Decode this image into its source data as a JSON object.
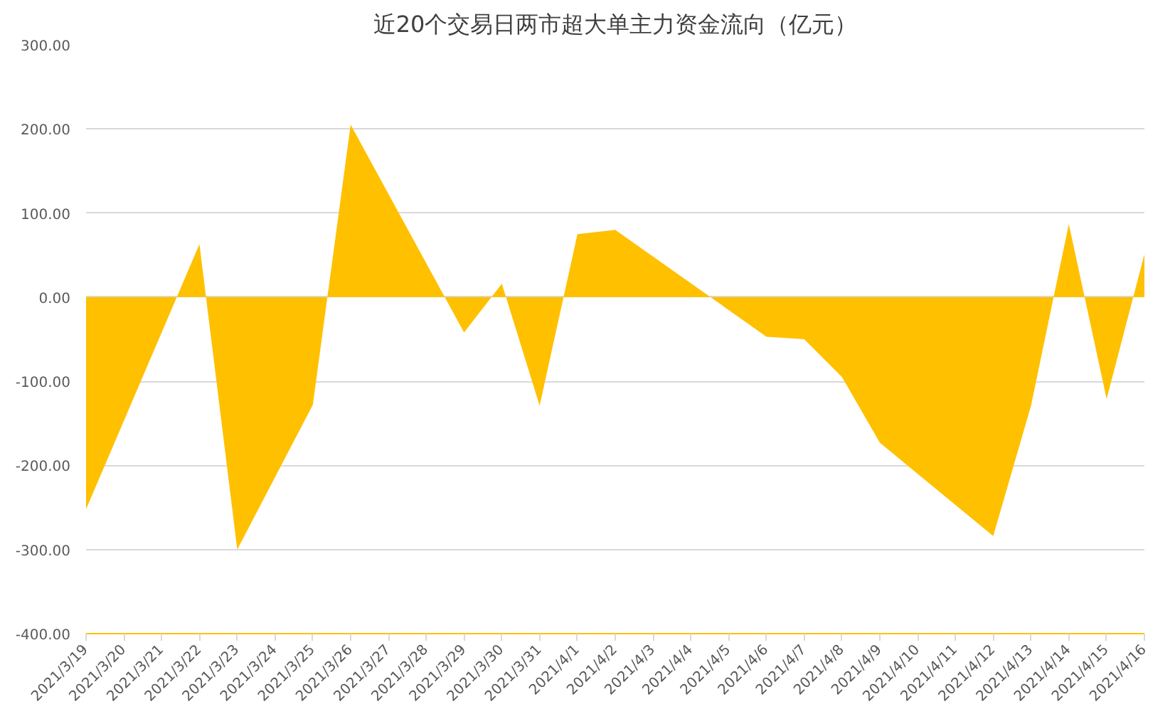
{
  "chart_data": {
    "type": "area",
    "title": "近20个交易日两市超大单主力资金流向（亿元）",
    "x": [
      "2021-03-19",
      "2021-03-22",
      "2021-03-23",
      "2021-03-24",
      "2021-03-25",
      "2021-03-26",
      "2021-03-29",
      "2021-03-30",
      "2021-03-31",
      "2021-04-01",
      "2021-04-02",
      "2021-04-06",
      "2021-04-07",
      "2021-04-08",
      "2021-04-09",
      "2021-04-12",
      "2021-04-13",
      "2021-04-14",
      "2021-04-15",
      "2021-04-16"
    ],
    "series": [
      {
        "color": "#ffc000",
        "values": [
          -252,
          63,
          -300,
          -214,
          -128,
          205,
          -42,
          16,
          -129,
          75,
          80,
          -47,
          -50,
          -95,
          -173,
          -284,
          -129,
          87,
          -121,
          51
        ]
      }
    ],
    "xlim": [
      "2021-03-19",
      "2021-04-16"
    ],
    "xticks": [
      {
        "value": "2021-03-19",
        "label": "2021/3/19"
      },
      {
        "value": "2021-03-20",
        "label": "2021/3/20"
      },
      {
        "value": "2021-03-21",
        "label": "2021/3/21"
      },
      {
        "value": "2021-03-22",
        "label": "2021/3/22"
      },
      {
        "value": "2021-03-23",
        "label": "2021/3/23"
      },
      {
        "value": "2021-03-24",
        "label": "2021/3/24"
      },
      {
        "value": "2021-03-25",
        "label": "2021/3/25"
      },
      {
        "value": "2021-03-26",
        "label": "2021/3/26"
      },
      {
        "value": "2021-03-27",
        "label": "2021/3/27"
      },
      {
        "value": "2021-03-28",
        "label": "2021/3/28"
      },
      {
        "value": "2021-03-29",
        "label": "2021/3/29"
      },
      {
        "value": "2021-03-30",
        "label": "2021/3/30"
      },
      {
        "value": "2021-03-31",
        "label": "2021/3/31"
      },
      {
        "value": "2021-04-01",
        "label": "2021/4/1"
      },
      {
        "value": "2021-04-02",
        "label": "2021/4/2"
      },
      {
        "value": "2021-04-03",
        "label": "2021/4/3"
      },
      {
        "value": "2021-04-04",
        "label": "2021/4/4"
      },
      {
        "value": "2021-04-05",
        "label": "2021/4/5"
      },
      {
        "value": "2021-04-06",
        "label": "2021/4/6"
      },
      {
        "value": "2021-04-07",
        "label": "2021/4/7"
      },
      {
        "value": "2021-04-08",
        "label": "2021/4/8"
      },
      {
        "value": "2021-04-09",
        "label": "2021/4/9"
      },
      {
        "value": "2021-04-10",
        "label": "2021/4/10"
      },
      {
        "value": "2021-04-11",
        "label": "2021/4/11"
      },
      {
        "value": "2021-04-12",
        "label": "2021/4/12"
      },
      {
        "value": "2021-04-13",
        "label": "2021/4/13"
      },
      {
        "value": "2021-04-14",
        "label": "2021/4/14"
      },
      {
        "value": "2021-04-15",
        "label": "2021/4/15"
      },
      {
        "value": "2021-04-16",
        "label": "2021/4/16"
      }
    ],
    "ylim": [
      -400,
      300
    ],
    "yticks": [
      {
        "value": -400,
        "label": "-400.00"
      },
      {
        "value": -300,
        "label": "-300.00"
      },
      {
        "value": -200,
        "label": "-200.00"
      },
      {
        "value": -100,
        "label": "-100.00"
      },
      {
        "value": 0,
        "label": "0.00"
      },
      {
        "value": 100,
        "label": "100.00"
      },
      {
        "value": 200,
        "label": "200.00"
      },
      {
        "value": 300,
        "label": "300.00"
      }
    ],
    "grid": "y"
  }
}
